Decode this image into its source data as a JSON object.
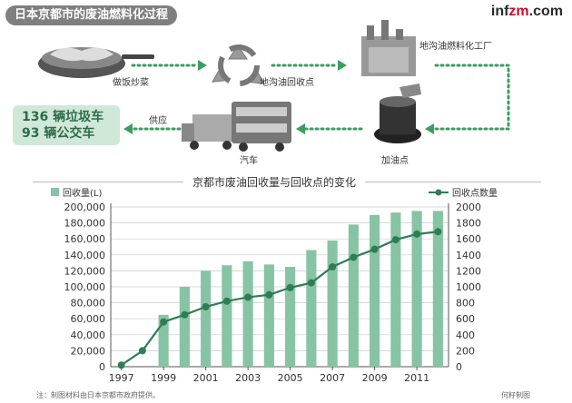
{
  "header": {
    "title": "日本京都市的废油燃料化过程"
  },
  "brand": {
    "prefix": "inf",
    "accent": "zm",
    "suffix": ".com",
    "dot": "."
  },
  "process": {
    "cooking": "做饭炒菜",
    "collection": "地沟油回收点",
    "factory": "地沟油燃料化工厂",
    "gas_station": "加油点",
    "vehicles": "汽车",
    "supply": "供应",
    "garbage_trucks": "136 辆垃圾车",
    "buses": "93 辆公交车"
  },
  "colors": {
    "bar": "#86c4a3",
    "line": "#2e7d55",
    "box": "#cfe8d8",
    "dotted": "#3a9e5f"
  },
  "icons": [
    "wok-icon",
    "recycle-icon",
    "factory-icon",
    "oil-barrel-icon",
    "truck-icon",
    "bus-icon"
  ],
  "chart_data": {
    "type": "bar",
    "title": "京都市废油回收量与回收点的变化",
    "x": [
      1997,
      1998,
      1999,
      2000,
      2001,
      2002,
      2003,
      2004,
      2005,
      2006,
      2007,
      2008,
      2009,
      2010,
      2011,
      2012
    ],
    "x_ticks": [
      "1997",
      "1999",
      "2001",
      "2003",
      "2005",
      "2007",
      "2009",
      "2011"
    ],
    "series": [
      {
        "name": "回收量(L)",
        "type": "bar",
        "axis": "left",
        "values": [
          0,
          0,
          65000,
          100000,
          120000,
          127000,
          132000,
          128000,
          125000,
          146000,
          158000,
          178000,
          190000,
          193000,
          195000,
          195000
        ]
      },
      {
        "name": "回收点数量",
        "type": "line",
        "axis": "right",
        "values": [
          20,
          200,
          560,
          650,
          750,
          820,
          870,
          900,
          990,
          1050,
          1250,
          1370,
          1470,
          1590,
          1660,
          1690
        ]
      }
    ],
    "y_left": {
      "ticks": [
        "0",
        "20,000",
        "40,000",
        "60,000",
        "80,000",
        "100,000",
        "120,000",
        "140,000",
        "160,000",
        "180,000",
        "200,000"
      ],
      "ylim": [
        0,
        200000
      ]
    },
    "y_right": {
      "ticks": [
        "0",
        "200",
        "400",
        "600",
        "800",
        "1000",
        "1200",
        "1400",
        "1600",
        "1800",
        "2000"
      ],
      "ylim": [
        0,
        2000
      ]
    },
    "grid": true,
    "legend": "top"
  },
  "footer": {
    "note": "注：制图材料由日本京都市政府提供。",
    "credit": "何籽制图"
  }
}
